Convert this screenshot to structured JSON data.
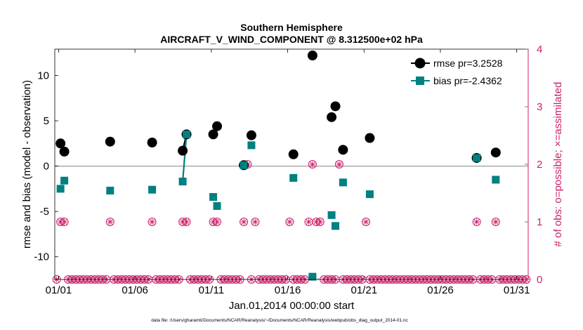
{
  "chart_data": {
    "type": "scatter",
    "title_line1": "Southern Hemisphere",
    "title_line2": "AIRCRAFT_V_WIND_COMPONENT @ 8.312500e+02 hPa",
    "xlabel": "Jan.01,2014 00:00:00 start",
    "ylabel_left": "rmse and bias (model - observation)",
    "ylabel_right": "# of obs: o=possible; ×=assimilated",
    "footnote": "data file: /Users/gharamti/Documents/NCAR/Reanalysis/~/Documents/NCAR/Reanalysis/webpub/obs_diag_output_2014-01.nc",
    "xlim": [
      0.75,
      31.75
    ],
    "ylim_left": [
      -12.5,
      12.9
    ],
    "ylim_right": [
      0,
      4
    ],
    "x_ticks": [
      1,
      6,
      11,
      16,
      21,
      26,
      31
    ],
    "x_tick_labels": [
      "01/01",
      "01/06",
      "01/11",
      "01/16",
      "01/21",
      "01/26",
      "01/31"
    ],
    "y_ticks_left": [
      -10,
      -5,
      0,
      5,
      10
    ],
    "y_tick_labels_left": [
      "-10",
      "-5",
      "0",
      "5",
      "10"
    ],
    "y_ticks_right": [
      0,
      1,
      2,
      3,
      4
    ],
    "y_tick_labels_right": [
      "0",
      "1",
      "2",
      "3",
      "4"
    ],
    "colors": {
      "rmse": "#000000",
      "bias": "#008080",
      "obs": "#cc1f6a",
      "zero_line": "#aaaaaa"
    },
    "series": [
      {
        "name": "rmse pr=3.2528",
        "axis": "left",
        "points": [
          [
            1.125,
            2.5
          ],
          [
            1.375,
            1.6
          ],
          [
            4.375,
            2.7
          ],
          [
            7.125,
            2.6
          ],
          [
            9.125,
            1.7
          ],
          [
            9.375,
            3.5
          ],
          [
            11.125,
            3.5
          ],
          [
            11.375,
            4.4
          ],
          [
            13.125,
            0.1
          ],
          [
            13.625,
            3.4
          ],
          [
            16.375,
            1.3
          ],
          [
            17.625,
            12.2
          ],
          [
            18.875,
            5.4
          ],
          [
            19.125,
            6.6
          ],
          [
            19.625,
            1.8
          ],
          [
            21.375,
            3.1
          ],
          [
            28.375,
            0.9
          ],
          [
            29.625,
            1.5
          ]
        ],
        "connected": [
          [
            4,
            5
          ]
        ]
      },
      {
        "name": "bias pr=-2.4362",
        "axis": "left",
        "points": [
          [
            1.125,
            -2.5
          ],
          [
            1.375,
            -1.6
          ],
          [
            4.375,
            -2.7
          ],
          [
            7.125,
            -2.6
          ],
          [
            9.125,
            -1.7
          ],
          [
            9.375,
            3.5
          ],
          [
            11.125,
            -3.4
          ],
          [
            11.375,
            -4.4
          ],
          [
            13.125,
            0.1
          ],
          [
            13.625,
            2.3
          ],
          [
            16.375,
            -1.3
          ],
          [
            17.625,
            -12.2
          ],
          [
            18.875,
            -5.4
          ],
          [
            19.125,
            -6.6
          ],
          [
            19.625,
            -1.8
          ],
          [
            21.375,
            -3.1
          ],
          [
            28.375,
            0.9
          ],
          [
            29.625,
            -1.5
          ]
        ],
        "connected": [
          [
            4,
            5
          ]
        ]
      },
      {
        "name": "# of obs (possible / assimilated)",
        "axis": "right",
        "x_start": 0.875,
        "x_step": 0.25,
        "values": [
          0,
          1,
          1,
          0,
          0,
          0,
          0,
          0,
          0,
          0,
          0,
          0,
          0,
          0,
          1,
          0,
          0,
          0,
          0,
          0,
          0,
          0,
          0,
          0,
          0,
          1,
          0,
          0,
          0,
          0,
          0,
          0,
          0,
          1,
          1,
          0,
          0,
          0,
          0,
          0,
          0,
          1,
          1,
          0,
          0,
          0,
          0,
          0,
          0,
          1,
          2,
          0,
          1,
          0,
          0,
          0,
          0,
          0,
          0,
          0,
          0,
          1,
          0,
          0,
          0,
          0,
          1,
          2,
          1,
          1,
          0,
          0,
          0,
          0,
          2,
          0,
          0,
          0,
          0,
          0,
          0,
          1,
          0,
          0,
          0,
          0,
          0,
          0,
          0,
          0,
          0,
          0,
          0,
          0,
          0,
          0,
          0,
          0,
          0,
          0,
          0,
          0,
          0,
          0,
          0,
          0,
          0,
          0,
          0,
          0,
          1,
          0,
          0,
          0,
          0,
          1,
          0,
          0,
          0,
          0,
          0,
          0,
          0,
          0
        ]
      }
    ]
  }
}
